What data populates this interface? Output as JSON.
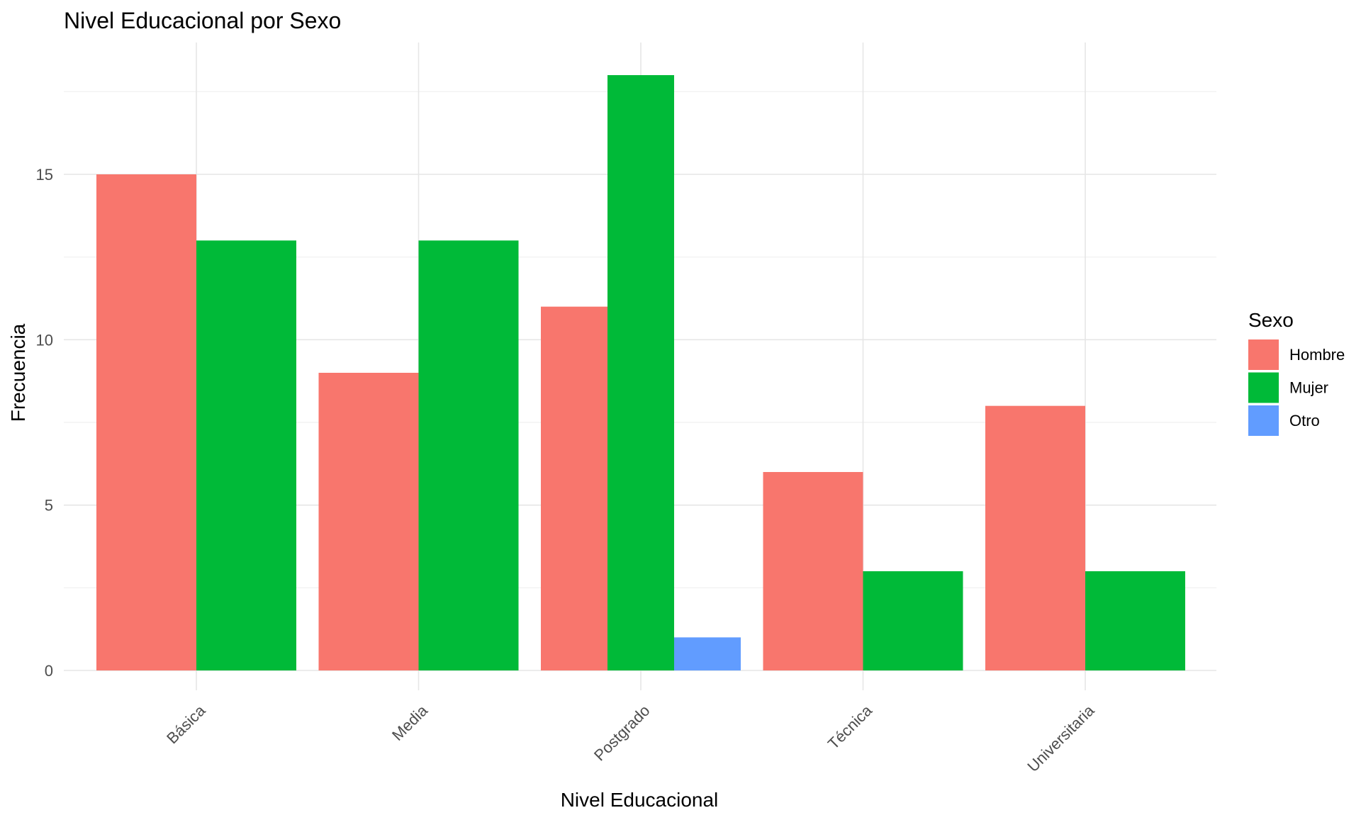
{
  "chart_data": {
    "type": "bar",
    "title": "Nivel Educacional por Sexo",
    "xlabel": "Nivel Educacional",
    "ylabel": "Frecuencia",
    "categories": [
      "Básica",
      "Media",
      "Postgrado",
      "Técnica",
      "Universitaria"
    ],
    "series": [
      {
        "name": "Hombre",
        "color": "#F8766D",
        "values": [
          15,
          9,
          11,
          6,
          8
        ]
      },
      {
        "name": "Mujer",
        "color": "#00BA38",
        "values": [
          13,
          13,
          18,
          3,
          3
        ]
      },
      {
        "name": "Otro",
        "color": "#619CFF",
        "values": [
          null,
          null,
          1,
          null,
          null
        ]
      }
    ],
    "ylim": [
      0,
      18.9
    ],
    "yticks": [
      0,
      5,
      10,
      15
    ],
    "grid": true,
    "legend": {
      "title": "Sexo",
      "position": "right"
    },
    "bar_position": "dodge (groups with fewer series fill the full slot)"
  }
}
